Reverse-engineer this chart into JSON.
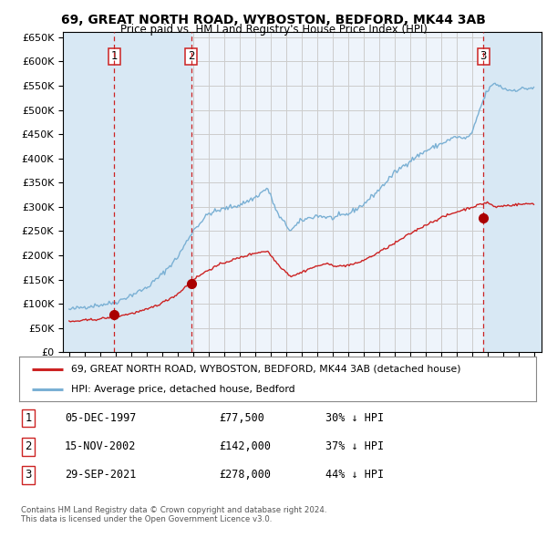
{
  "title": "69, GREAT NORTH ROAD, WYBOSTON, BEDFORD, MK44 3AB",
  "subtitle": "Price paid vs. HM Land Registry's House Price Index (HPI)",
  "legend_line1": "69, GREAT NORTH ROAD, WYBOSTON, BEDFORD, MK44 3AB (detached house)",
  "legend_line2": "HPI: Average price, detached house, Bedford",
  "footer1": "Contains HM Land Registry data © Crown copyright and database right 2024.",
  "footer2": "This data is licensed under the Open Government Licence v3.0.",
  "sales": [
    {
      "num": 1,
      "date_str": "05-DEC-1997",
      "price": 77500,
      "hpi_pct": "30% ↓ HPI",
      "year_f": 1997.92
    },
    {
      "num": 2,
      "date_str": "15-NOV-2002",
      "price": 142000,
      "hpi_pct": "37% ↓ HPI",
      "year_f": 2002.87
    },
    {
      "num": 3,
      "date_str": "29-SEP-2021",
      "price": 278000,
      "hpi_pct": "44% ↓ HPI",
      "year_f": 2021.75
    }
  ],
  "hpi_color": "#7ab0d4",
  "price_color": "#cc2222",
  "sale_dot_color": "#aa0000",
  "vline_color": "#cc2222",
  "shade_color": "#d8e8f4",
  "grid_color": "#cccccc",
  "bg_color": "#eef4fb",
  "ylim_max": 660000,
  "xlim_min": 1994.6,
  "xlim_max": 2025.5
}
